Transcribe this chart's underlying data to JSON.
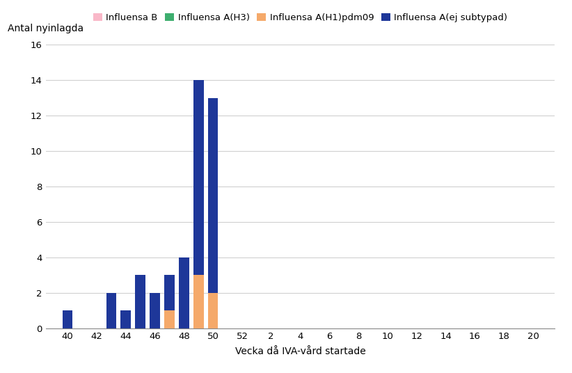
{
  "weeks": [
    40,
    41,
    42,
    43,
    44,
    45,
    46,
    47,
    48,
    49,
    50,
    51,
    52,
    53,
    54,
    55,
    56,
    57,
    58,
    59,
    60,
    61,
    62,
    63,
    64,
    65,
    66,
    67,
    68,
    69,
    70,
    71,
    72
  ],
  "influenza_b": [
    0,
    0,
    0,
    0,
    0,
    0,
    0,
    0,
    0,
    0,
    0,
    0,
    0,
    0,
    0,
    0,
    0,
    0,
    0,
    0,
    0,
    0,
    0,
    0,
    0,
    0,
    0,
    0,
    0,
    0,
    0,
    0,
    0
  ],
  "influenza_h3": [
    0,
    0,
    0,
    0,
    0,
    0,
    0,
    0,
    0,
    0,
    0,
    0,
    0,
    0,
    0,
    0,
    0,
    0,
    0,
    0,
    0,
    0,
    0,
    0,
    0,
    0,
    0,
    0,
    0,
    0,
    0,
    0,
    0
  ],
  "influenza_h1": [
    0,
    0,
    0,
    0,
    0,
    0,
    0,
    1,
    0,
    3,
    2,
    0,
    0,
    0,
    0,
    0,
    0,
    0,
    0,
    0,
    0,
    0,
    0,
    0,
    0,
    0,
    0,
    0,
    0,
    0,
    0,
    0,
    0
  ],
  "influenza_ej": [
    1,
    0,
    0,
    2,
    1,
    3,
    2,
    2,
    4,
    11,
    11,
    0,
    0,
    0,
    0,
    0,
    0,
    0,
    0,
    0,
    0,
    0,
    0,
    0,
    0,
    0,
    0,
    0,
    0,
    0,
    0,
    0,
    0
  ],
  "x_tick_positions": [
    40,
    42,
    44,
    46,
    48,
    50,
    52,
    54,
    56,
    58,
    60,
    62,
    64,
    66,
    68,
    70,
    72
  ],
  "x_tick_labels": [
    "40",
    "42",
    "44",
    "46",
    "48",
    "50",
    "52",
    "2",
    "4",
    "6",
    "8",
    "10",
    "12",
    "14",
    "16",
    "18",
    "20"
  ],
  "x_min": 38.5,
  "x_max": 73.5,
  "color_b": "#f9b8c8",
  "color_h3": "#3dae6e",
  "color_h1": "#f5a96a",
  "color_ej": "#1e3799",
  "ylabel": "Antal nyinlagda",
  "xlabel": "Vecka då IVA-vård startade",
  "ylim": [
    0,
    16
  ],
  "yticks": [
    0,
    2,
    4,
    6,
    8,
    10,
    12,
    14,
    16
  ],
  "legend_labels": [
    "Influensa B",
    "Influensa A(H3)",
    "Influensa A(H1)pdm09",
    "Influensa A(ej subtypad)"
  ],
  "bar_width": 0.7,
  "figsize": [
    8.22,
    5.36
  ],
  "dpi": 100
}
